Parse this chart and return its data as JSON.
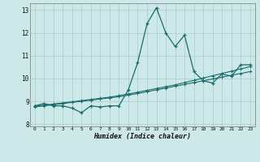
{
  "xlabel": "Humidex (Indice chaleur)",
  "background_color": "#cce8e8",
  "grid_color": "#aacccc",
  "line_color": "#1a6b6b",
  "xlim": [
    -0.5,
    23.5
  ],
  "ylim": [
    7.9,
    13.3
  ],
  "yticks": [
    8,
    9,
    10,
    11,
    12,
    13
  ],
  "xticks": [
    0,
    1,
    2,
    3,
    4,
    5,
    6,
    7,
    8,
    9,
    10,
    11,
    12,
    13,
    14,
    15,
    16,
    17,
    18,
    19,
    20,
    21,
    22,
    23
  ],
  "series1_x": [
    0,
    1,
    2,
    3,
    4,
    5,
    6,
    7,
    8,
    9,
    10,
    11,
    12,
    13,
    14,
    15,
    16,
    17,
    18,
    19,
    20,
    21,
    22,
    23
  ],
  "series1_y": [
    8.8,
    8.9,
    8.8,
    8.8,
    8.7,
    8.5,
    8.8,
    8.75,
    8.8,
    8.8,
    9.5,
    10.7,
    12.4,
    13.1,
    12.0,
    11.4,
    11.9,
    10.3,
    9.9,
    9.8,
    10.2,
    10.1,
    10.6,
    10.6
  ],
  "series2_x": [
    0,
    1,
    2,
    3,
    4,
    5,
    6,
    7,
    8,
    9,
    10,
    11,
    12,
    13,
    14,
    15,
    16,
    17,
    18,
    19,
    20,
    21,
    22,
    23
  ],
  "series2_y": [
    8.78,
    8.83,
    8.88,
    8.93,
    8.98,
    9.03,
    9.08,
    9.13,
    9.18,
    9.25,
    9.32,
    9.4,
    9.48,
    9.56,
    9.64,
    9.72,
    9.82,
    9.92,
    10.02,
    10.12,
    10.22,
    10.32,
    10.42,
    10.52
  ],
  "series3_x": [
    0,
    1,
    2,
    3,
    4,
    5,
    6,
    7,
    8,
    9,
    10,
    11,
    12,
    13,
    14,
    15,
    16,
    17,
    18,
    19,
    20,
    21,
    22,
    23
  ],
  "series3_y": [
    8.75,
    8.8,
    8.85,
    8.9,
    8.95,
    9.0,
    9.05,
    9.1,
    9.15,
    9.2,
    9.27,
    9.34,
    9.42,
    9.5,
    9.58,
    9.66,
    9.74,
    9.82,
    9.9,
    9.98,
    10.06,
    10.14,
    10.22,
    10.3
  ]
}
